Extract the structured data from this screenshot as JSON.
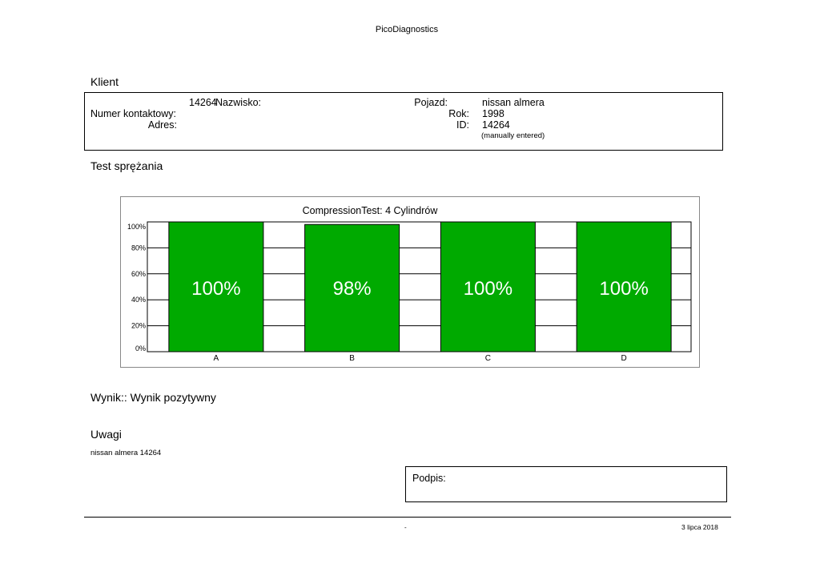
{
  "header": {
    "title": "PicoDiagnostics"
  },
  "client": {
    "heading": "Klient",
    "surname_label": "Nazwisko:",
    "surname_value": "14264",
    "contact_label": "Numer kontaktowy:",
    "contact_value": "",
    "address_label": "Adres:",
    "address_value": "",
    "vehicle_label": "Pojazd:",
    "vehicle_value": "nissan almera",
    "year_label": "Rok:",
    "year_value": "1998",
    "id_label": "ID:",
    "id_value": "14264",
    "id_note": "(manually entered)"
  },
  "test": {
    "heading": "Test sprężania"
  },
  "chart_data": {
    "type": "bar",
    "title": "CompressionTest: 4 Cylindrów",
    "categories": [
      "A",
      "B",
      "C",
      "D"
    ],
    "values": [
      100,
      98,
      100,
      100
    ],
    "data_labels": [
      "100%",
      "98%",
      "100%",
      "100%"
    ],
    "yticks": [
      "100%",
      "80%",
      "60%",
      "40%",
      "20%",
      "0%"
    ],
    "ylim": [
      0,
      100
    ],
    "bar_color": "#00aa00",
    "grid": true,
    "xlabel": "",
    "ylabel": ""
  },
  "result": {
    "text": "Wynik:: Wynik pozytywny"
  },
  "notes": {
    "heading": "Uwagi",
    "text": "nissan almera 14264"
  },
  "signature": {
    "label": "Podpis:"
  },
  "footer": {
    "center": "-",
    "date": "3 lipca 2018"
  }
}
